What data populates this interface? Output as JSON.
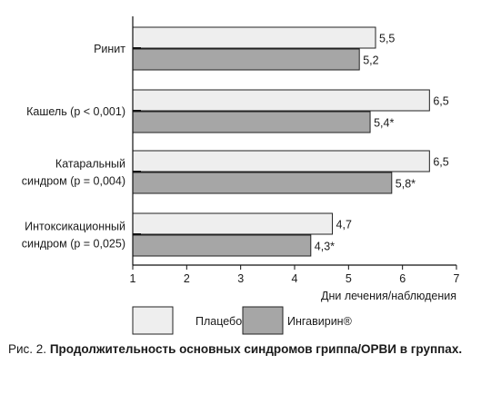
{
  "chart_data": {
    "type": "bar",
    "orientation": "horizontal",
    "categories": [
      [
        "Ринит"
      ],
      [
        "Кашель (p < 0,001)"
      ],
      [
        "Катаральный",
        "синдром (p = 0,004)"
      ],
      [
        "Интоксикационный",
        "синдром (p = 0,025)"
      ]
    ],
    "series": [
      {
        "name": "Плацебо",
        "color": "#eeeeee",
        "values": [
          5.5,
          6.5,
          6.5,
          4.7
        ],
        "labels": [
          "5,5",
          "6,5",
          "6,5",
          "4,7"
        ]
      },
      {
        "name": "Ингавирин®",
        "color": "#a6a6a6",
        "values": [
          5.2,
          5.4,
          5.8,
          4.3
        ],
        "labels": [
          "5,2",
          "5,4*",
          "5,8*",
          "4,3*"
        ]
      }
    ],
    "xlabel": "Дни лечения/наблюдения",
    "xlim": [
      1,
      7
    ],
    "xticks": [
      "1",
      "2",
      "3",
      "4",
      "5",
      "6",
      "7"
    ],
    "grid": false,
    "legend_position": "bottom"
  },
  "caption": {
    "prefix": "Рис. 2. ",
    "text": "Продолжительность основных синдромов гриппа/ОРВИ в группах."
  }
}
